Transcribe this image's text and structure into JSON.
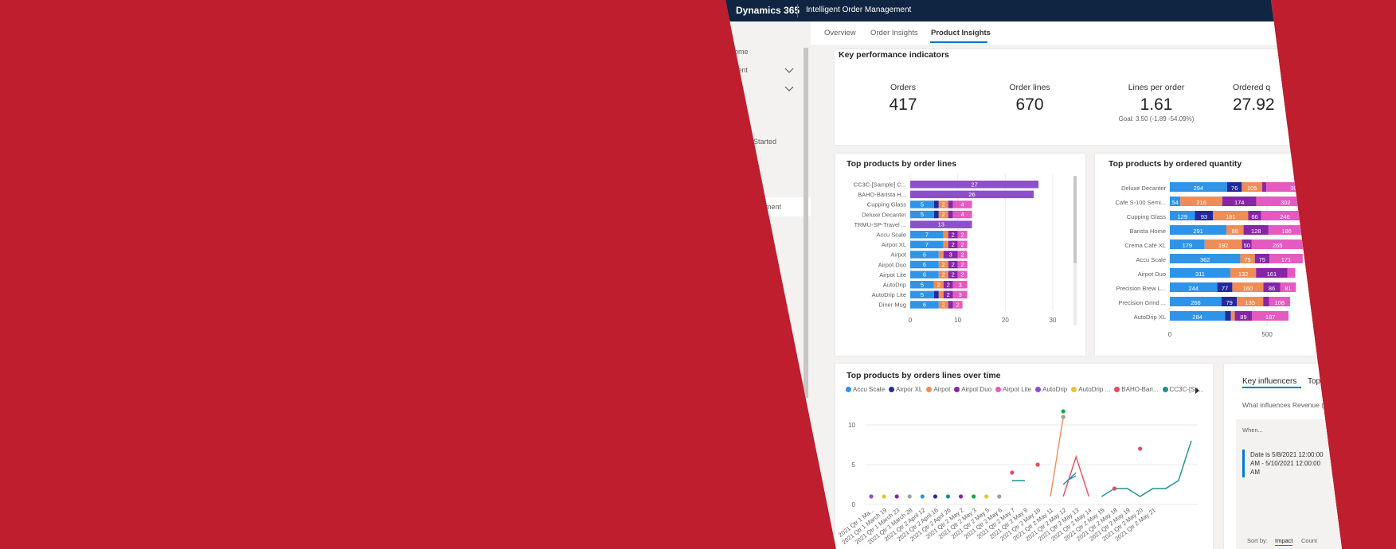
{
  "header": {
    "brand": "Dynamics 365",
    "app_name": "Intelligent Order Management"
  },
  "sidebar": {
    "items": [
      {
        "label": "ome",
        "chevron": false
      },
      {
        "label": "cent",
        "chevron": true
      },
      {
        "label": "ed",
        "chevron": true
      },
      {
        "label": "Started",
        "chevron": false
      },
      {
        "label": "ts",
        "chevron": false
      },
      {
        "label": "agement",
        "chevron": false,
        "active": true
      }
    ]
  },
  "tabs": [
    "Overview",
    "Order Insights",
    "Product Insights"
  ],
  "active_tab": "Product Insights",
  "kpis": {
    "title": "Key performance indicators",
    "items": [
      {
        "label": "Orders",
        "value": "417",
        "goal": ""
      },
      {
        "label": "Order lines",
        "value": "670",
        "goal": ""
      },
      {
        "label": "Lines per order",
        "value": "1.61",
        "goal": "Goal: 3.50 (-1.89 -54.09%)"
      },
      {
        "label": "Ordered q",
        "value": "27.92",
        "goal": ""
      }
    ]
  },
  "colors": {
    "blue": "#2f94e8",
    "navy": "#252a9a",
    "orange": "#ee8d57",
    "purple": "#8626a6",
    "pink": "#e55ac0",
    "violet": "#8e4fcc",
    "yellow": "#e8c32f",
    "red": "#e34d5e",
    "teal": "#1e8f90",
    "green": "#17a558",
    "gray": "#9f9f9f",
    "accent": "#0078d4",
    "brand_red": "#be1e2d"
  },
  "chart_data": [
    {
      "type": "bar",
      "stacked": true,
      "orientation": "horizontal",
      "title": "Top products by order lines",
      "categories": [
        "CC3C-[Sample] C...",
        "BAHO-Barista H...",
        "Cupping Glass",
        "Deluxe Decanter",
        "TRMU-SP-Travel ...",
        "Accu Scale",
        "Airpor XL",
        "Airpot",
        "Airpot Duo",
        "Airpot Lite",
        "AutoDrip",
        "AutoDrip Lite",
        "Diner Mug"
      ],
      "segments": [
        [
          {
            "v": 27,
            "c": "violet"
          }
        ],
        [
          {
            "v": 26,
            "c": "violet"
          }
        ],
        [
          {
            "v": 5,
            "c": "blue"
          },
          {
            "v": 1,
            "c": "navy"
          },
          {
            "v": 2,
            "c": "orange"
          },
          {
            "v": 1,
            "c": "purple"
          },
          {
            "v": 4,
            "c": "pink"
          }
        ],
        [
          {
            "v": 5,
            "c": "blue"
          },
          {
            "v": 1,
            "c": "navy"
          },
          {
            "v": 2,
            "c": "orange"
          },
          {
            "v": 1,
            "c": "purple"
          },
          {
            "v": 4,
            "c": "pink"
          }
        ],
        [
          {
            "v": 13,
            "c": "violet"
          }
        ],
        [
          {
            "v": 7,
            "c": "blue"
          },
          {
            "v": 1,
            "c": "orange"
          },
          {
            "v": 2,
            "c": "purple"
          },
          {
            "v": 2,
            "c": "pink"
          }
        ],
        [
          {
            "v": 7,
            "c": "blue"
          },
          {
            "v": 1,
            "c": "orange"
          },
          {
            "v": 2,
            "c": "purple"
          },
          {
            "v": 2,
            "c": "pink"
          }
        ],
        [
          {
            "v": 6,
            "c": "blue"
          },
          {
            "v": 1,
            "c": "orange"
          },
          {
            "v": 3,
            "c": "purple"
          },
          {
            "v": 2,
            "c": "pink"
          }
        ],
        [
          {
            "v": 6,
            "c": "blue"
          },
          {
            "v": 2,
            "c": "orange"
          },
          {
            "v": 2,
            "c": "purple"
          },
          {
            "v": 2,
            "c": "pink"
          }
        ],
        [
          {
            "v": 6,
            "c": "blue"
          },
          {
            "v": 2,
            "c": "orange"
          },
          {
            "v": 2,
            "c": "purple"
          },
          {
            "v": 2,
            "c": "pink"
          }
        ],
        [
          {
            "v": 5,
            "c": "blue"
          },
          {
            "v": 2,
            "c": "orange"
          },
          {
            "v": 2,
            "c": "purple"
          },
          {
            "v": 3,
            "c": "pink"
          }
        ],
        [
          {
            "v": 5,
            "c": "blue"
          },
          {
            "v": 1,
            "c": "navy"
          },
          {
            "v": 1,
            "c": "orange"
          },
          {
            "v": 2,
            "c": "purple"
          },
          {
            "v": 3,
            "c": "pink"
          }
        ],
        [
          {
            "v": 6,
            "c": "blue"
          },
          {
            "v": 2,
            "c": "orange"
          },
          {
            "v": 1,
            "c": "purple"
          },
          {
            "v": 2,
            "c": "pink"
          }
        ]
      ],
      "xticks": [
        0,
        10,
        20,
        30
      ],
      "xlim": [
        0,
        30
      ]
    },
    {
      "type": "bar",
      "stacked": true,
      "orientation": "horizontal",
      "title": "Top products by ordered quantity",
      "categories": [
        "Deluxe Decanter",
        "Cafe S-100 Semi...",
        "Cupping Glass",
        "Barista Home",
        "Crema Café XL",
        "Accu Scale",
        "Airpot Duo",
        "Precision Brew L...",
        "Precision Grind ...",
        "AutoDrip XL"
      ],
      "segments": [
        [
          {
            "v": 294,
            "c": "blue"
          },
          {
            "v": 76,
            "c": "navy"
          },
          {
            "v": 105,
            "c": "orange"
          },
          {
            "v": 20,
            "c": "purple"
          },
          {
            "v": 300,
            "c": "pink"
          }
        ],
        [
          {
            "v": 54,
            "c": "blue"
          },
          {
            "v": 216,
            "c": "orange"
          },
          {
            "v": 174,
            "c": "purple"
          },
          {
            "v": 302,
            "c": "pink"
          }
        ],
        [
          {
            "v": 129,
            "c": "blue"
          },
          {
            "v": 93,
            "c": "navy"
          },
          {
            "v": 181,
            "c": "orange"
          },
          {
            "v": 66,
            "c": "purple"
          },
          {
            "v": 246,
            "c": "pink"
          }
        ],
        [
          {
            "v": 291,
            "c": "blue"
          },
          {
            "v": 88,
            "c": "orange"
          },
          {
            "v": 128,
            "c": "purple"
          },
          {
            "v": 186,
            "c": "pink"
          }
        ],
        [
          {
            "v": 179,
            "c": "blue"
          },
          {
            "v": 192,
            "c": "orange"
          },
          {
            "v": 50,
            "c": "purple"
          },
          {
            "v": 265,
            "c": "pink"
          }
        ],
        [
          {
            "v": 362,
            "c": "blue"
          },
          {
            "v": 75,
            "c": "orange"
          },
          {
            "v": 75,
            "c": "purple"
          },
          {
            "v": 171,
            "c": "pink"
          }
        ],
        [
          {
            "v": 311,
            "c": "blue"
          },
          {
            "v": 132,
            "c": "orange"
          },
          {
            "v": 161,
            "c": "purple"
          },
          {
            "v": 40,
            "c": "pink"
          }
        ],
        [
          {
            "v": 244,
            "c": "blue"
          },
          {
            "v": 77,
            "c": "navy"
          },
          {
            "v": 160,
            "c": "orange"
          },
          {
            "v": 86,
            "c": "purple"
          },
          {
            "v": 81,
            "c": "pink"
          }
        ],
        [
          {
            "v": 266,
            "c": "blue"
          },
          {
            "v": 79,
            "c": "navy"
          },
          {
            "v": 135,
            "c": "orange"
          },
          {
            "v": 30,
            "c": "purple"
          },
          {
            "v": 108,
            "c": "pink"
          }
        ],
        [
          {
            "v": 284,
            "c": "blue"
          },
          {
            "v": 30,
            "c": "navy"
          },
          {
            "v": 20,
            "c": "orange"
          },
          {
            "v": 89,
            "c": "purple"
          },
          {
            "v": 187,
            "c": "pink"
          }
        ]
      ],
      "xticks": [
        0,
        500
      ],
      "xlim": [
        0,
        700
      ]
    },
    {
      "type": "line",
      "title": "Top products by orders lines over time",
      "legend": [
        {
          "name": "Accu Scale",
          "c": "blue"
        },
        {
          "name": "Airpor XL",
          "c": "navy"
        },
        {
          "name": "Airpot",
          "c": "orange"
        },
        {
          "name": "Airpot Duo",
          "c": "purple"
        },
        {
          "name": "Airpot Lite",
          "c": "pink"
        },
        {
          "name": "AutoDrip",
          "c": "violet"
        },
        {
          "name": "AutoDrip ...",
          "c": "yellow"
        },
        {
          "name": "BAHO-Bari...",
          "c": "red"
        },
        {
          "name": "CC3C-[Sa...",
          "c": "teal"
        }
      ],
      "x": [
        "2021 Qtr 1 Ma...",
        "2021 Qtr 1 March 19",
        "2021 Qtr 1 March 23",
        "2021 Qtr 1 March 28",
        "2021 Qtr 2 April 12",
        "2021 Qtr 2 April 16",
        "2021 Qtr 2 April 26",
        "2021 Qtr 2 May 2",
        "2021 Qtr 2 May 3",
        "2021 Qtr 2 May 5",
        "2021 Qtr 2 May 6",
        "2021 Qtr 2 May 7",
        "2021 Qtr 2 May 8",
        "2021 Qtr 2 May 10",
        "2021 Qtr 2 May 11",
        "2021 Qtr 2 May 12",
        "2021 Qtr 2 May 13",
        "2021 Qtr 2 May 14",
        "2021 Qtr 2 May 15",
        "2021 Qtr 2 May 18",
        "2021 Qtr 2 May 19",
        "2021 Qtr 2 May 20",
        "2021 Qtr 2 May 21"
      ],
      "yticks": [
        0,
        5,
        10
      ],
      "ylim": [
        0,
        12
      ],
      "dots": [
        {
          "xi": 0,
          "y": 1,
          "c": "violet"
        },
        {
          "xi": 1,
          "y": 1,
          "c": "yellow"
        },
        {
          "xi": 2,
          "y": 1,
          "c": "purple"
        },
        {
          "xi": 3,
          "y": 1,
          "c": "gray"
        },
        {
          "xi": 4,
          "y": 1,
          "c": "blue"
        },
        {
          "xi": 5,
          "y": 1,
          "c": "navy"
        },
        {
          "xi": 6,
          "y": 1,
          "c": "teal"
        },
        {
          "xi": 7,
          "y": 1,
          "c": "purple"
        },
        {
          "xi": 8,
          "y": 1,
          "c": "green"
        },
        {
          "xi": 9,
          "y": 1,
          "c": "yellow"
        },
        {
          "xi": 10,
          "y": 1,
          "c": "gray"
        },
        {
          "xi": 11,
          "y": 4,
          "c": "red"
        },
        {
          "xi": 13,
          "y": 5,
          "c": "red"
        },
        {
          "xi": 15,
          "y": 11.7,
          "c": "green"
        },
        {
          "xi": 15,
          "y": 11,
          "c": "gray"
        },
        {
          "xi": 19,
          "y": 2,
          "c": "red"
        },
        {
          "xi": 21,
          "y": 7,
          "c": "red"
        }
      ],
      "lines": [
        {
          "c": "teal",
          "pts": [
            [
              11,
              3
            ],
            [
              12,
              3
            ]
          ]
        },
        {
          "c": "orange",
          "pts": [
            [
              14,
              1
            ],
            [
              15,
              11
            ]
          ]
        },
        {
          "c": "red",
          "pts": [
            [
              15,
              1
            ],
            [
              16,
              6
            ],
            [
              17,
              1
            ]
          ]
        },
        {
          "c": "teal",
          "pts": [
            [
              15,
              2.5
            ],
            [
              16,
              4
            ]
          ]
        },
        {
          "c": "blue",
          "pts": [
            [
              15.3,
              3
            ],
            [
              16,
              3.6
            ]
          ]
        },
        {
          "c": "teal",
          "pts": [
            [
              18,
              1
            ],
            [
              19,
              2
            ],
            [
              20,
              2
            ],
            [
              21,
              1
            ],
            [
              22,
              2
            ],
            [
              23,
              2
            ],
            [
              24,
              3
            ],
            [
              25,
              8
            ]
          ]
        }
      ]
    }
  ],
  "key_influencers": {
    "tabs": [
      "Key influencers",
      "Top segme"
    ],
    "question": "What influences Revenue (Base) to",
    "col_when": "When...",
    "col_then": "...the",
    "col_then2": "(Base)",
    "condition_line1": "Date is 5/8/2021 12:00:00",
    "condition_line2": "AM - 5/10/2021 12:00:00",
    "condition_line3": "AM",
    "sort_label": "Sort by:",
    "sort_options": [
      "Impact",
      "Count"
    ]
  }
}
